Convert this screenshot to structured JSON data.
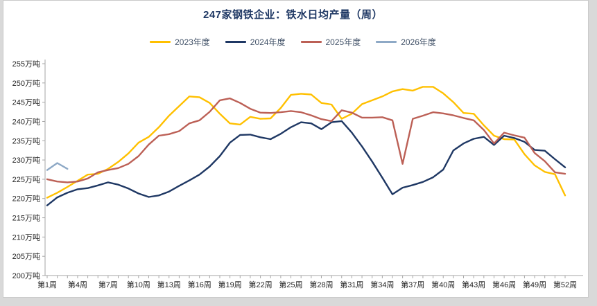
{
  "header": {
    "title": "247家钢铁企业：铁水日均产量（周）",
    "title_color": "#1F3864"
  },
  "chart_data": {
    "type": "line",
    "title": "247家钢铁企业：铁水日均产量（周）",
    "xlabel": "",
    "ylabel": "万吨",
    "ylim": [
      200,
      255
    ],
    "ytick_step": 5,
    "grid": false,
    "legend_position": "top",
    "y_tick_labels": [
      "255万吨",
      "250万吨",
      "245万吨",
      "240万吨",
      "235万吨",
      "230万吨",
      "225万吨",
      "220万吨",
      "215万吨",
      "210万吨",
      "205万吨",
      "200万吨"
    ],
    "x_tick_labels": [
      "第1周",
      "第4周",
      "第7周",
      "第10周",
      "第13周",
      "第16周",
      "第19周",
      "第22周",
      "第25周",
      "第28周",
      "第31周",
      "第34周",
      "第37周",
      "第40周",
      "第43周",
      "第46周",
      "第49周",
      "第52周"
    ],
    "x_tick_weeks": [
      1,
      4,
      7,
      10,
      13,
      16,
      19,
      22,
      25,
      28,
      31,
      34,
      37,
      40,
      43,
      46,
      49,
      52
    ],
    "x_unit": "week",
    "series": [
      {
        "name": "2023年度",
        "color": "#FFC000",
        "start_week": 1,
        "values": [
          220.2,
          221.5,
          223.0,
          224.6,
          226.2,
          226.4,
          227.7,
          229.5,
          231.7,
          234.5,
          236.0,
          238.5,
          241.5,
          244.0,
          246.5,
          246.3,
          244.8,
          242.0,
          239.5,
          239.2,
          241.2,
          240.7,
          240.8,
          243.5,
          246.9,
          247.2,
          247.0,
          244.8,
          244.4,
          240.7,
          242.0,
          244.5,
          245.5,
          246.5,
          247.8,
          248.4,
          248.0,
          249.0,
          249.0,
          247.3,
          245.0,
          242.2,
          242.0,
          239.0,
          236.3,
          235.4,
          235.3,
          231.5,
          228.6,
          226.9,
          226.3,
          220.8
        ]
      },
      {
        "name": "2024年度",
        "color": "#1F3864",
        "start_week": 1,
        "values": [
          218.2,
          220.3,
          221.5,
          222.4,
          222.7,
          223.4,
          224.2,
          223.6,
          222.6,
          221.3,
          220.4,
          220.8,
          221.8,
          223.3,
          224.7,
          226.2,
          228.3,
          231.0,
          234.5,
          236.5,
          236.6,
          235.9,
          235.4,
          236.8,
          238.5,
          239.8,
          239.5,
          238.0,
          239.8,
          240.1,
          237.1,
          233.5,
          229.6,
          225.4,
          221.1,
          222.8,
          223.5,
          224.3,
          225.5,
          227.5,
          232.5,
          234.3,
          235.5,
          236.0,
          233.9,
          236.3,
          235.7,
          234.7,
          232.6,
          232.4,
          230.2,
          228.1
        ]
      },
      {
        "name": "2025年度",
        "color": "#BC6056",
        "start_week": 1,
        "values": [
          225.0,
          224.4,
          224.2,
          224.4,
          225.2,
          226.8,
          227.4,
          227.9,
          229.0,
          231.0,
          234.0,
          236.3,
          236.7,
          237.5,
          239.5,
          240.3,
          242.5,
          245.5,
          246.0,
          244.8,
          243.3,
          242.3,
          242.2,
          242.4,
          242.7,
          242.4,
          241.6,
          240.6,
          240.1,
          242.9,
          242.3,
          241.0,
          241.0,
          241.1,
          240.3,
          229.0,
          240.7,
          241.5,
          242.4,
          242.1,
          241.6,
          240.9,
          240.3,
          237.8,
          234.3,
          237.1,
          236.4,
          235.8,
          231.8,
          229.7,
          226.8,
          226.4
        ]
      },
      {
        "name": "2026年度",
        "color": "#8EA9C6",
        "start_week": 1,
        "values": [
          227.4,
          229.2,
          227.7
        ]
      }
    ]
  }
}
